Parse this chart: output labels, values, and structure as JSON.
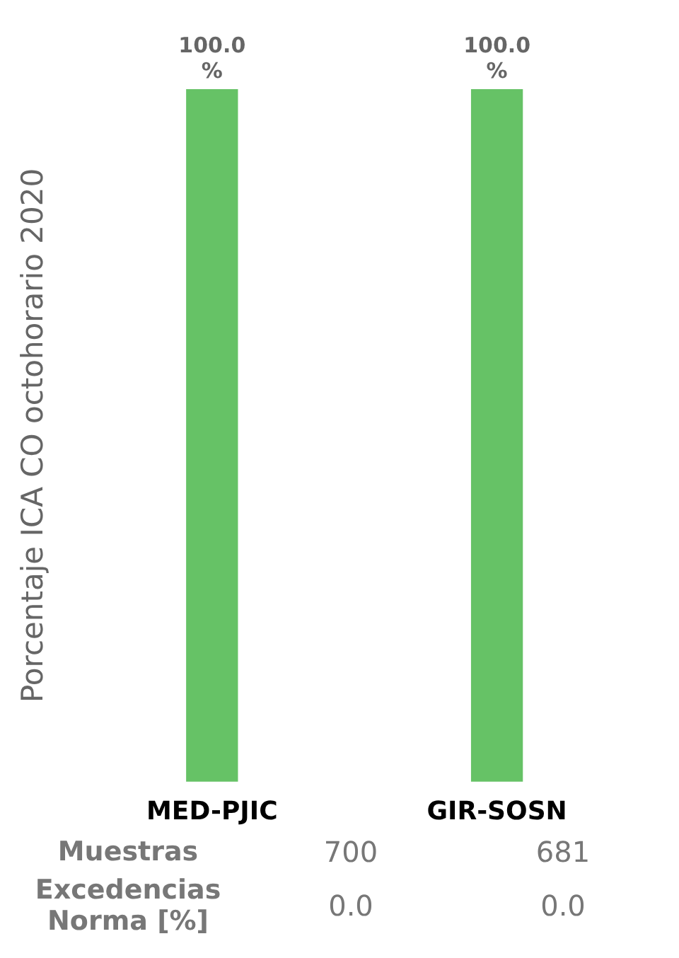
{
  "chart_data": {
    "type": "bar",
    "ylabel": "Porcentaje ICA CO octohorario 2020",
    "categories": [
      "MED-PJIC",
      "GIR-SOSN"
    ],
    "values": [
      100,
      100
    ],
    "color": "#66c266",
    "value_labels": [
      "100.0 %",
      "100.0 %"
    ],
    "annotations": [
      "Muestras",
      "700",
      "681",
      "Excedencias Norma [%]",
      "0.0",
      "0.0"
    ]
  }
}
